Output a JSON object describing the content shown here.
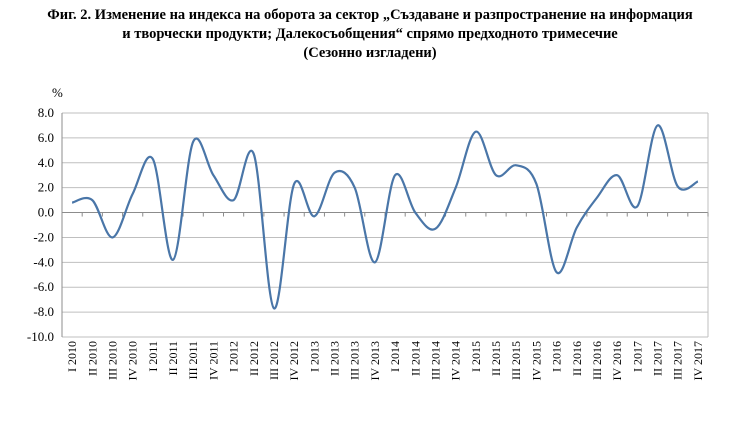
{
  "chart_data": {
    "type": "line",
    "title_lines": [
      "Фиг. 2. Изменение на индекса на оборота за сектор „Създаване и разпространение на информация",
      "и творчески продукти; Далекосъобщения“ спрямо предходното тримесечие",
      "(Сезонно изгладени)"
    ],
    "ylabel": "%",
    "ylim": [
      -10,
      8
    ],
    "yticks": [
      8.0,
      6.0,
      4.0,
      2.0,
      0.0,
      -2.0,
      -4.0,
      -6.0,
      -8.0,
      -10.0
    ],
    "ytick_labels": [
      "8.0",
      "6.0",
      "4.0",
      "2.0",
      "0.0",
      "-2.0",
      "-4.0",
      "-6.0",
      "-8.0",
      "-10.0"
    ],
    "grid": true,
    "categories": [
      "I 2010",
      "II 2010",
      "III 2010",
      "IV 2010",
      "I 2011",
      "II 2011",
      "III 2011",
      "IV 2011",
      "I 2012",
      "II 2012",
      "III 2012",
      "IV 2012",
      "I 2013",
      "II 2013",
      "III 2013",
      "IV 2013",
      "I 2014",
      "II 2014",
      "III 2014",
      "IV 2014",
      "I 2015",
      "II 2015",
      "III 2015",
      "IV 2015",
      "I 2016",
      "II 2016",
      "III 2016",
      "IV 2016",
      "I 2017",
      "II 2017",
      "III 2017",
      "IV 2017"
    ],
    "series": [
      {
        "values": [
          0.8,
          1.0,
          -2.0,
          1.5,
          4.3,
          -3.8,
          5.7,
          3.0,
          1.0,
          4.7,
          -7.7,
          2.3,
          -0.3,
          3.2,
          2.0,
          -4.0,
          3.0,
          0.0,
          -1.3,
          2.0,
          6.5,
          3.0,
          3.8,
          2.3,
          -4.8,
          -1.2,
          1.2,
          3.0,
          0.5,
          7.0,
          2.1,
          2.5
        ],
        "color": "#4a76a8"
      }
    ]
  }
}
